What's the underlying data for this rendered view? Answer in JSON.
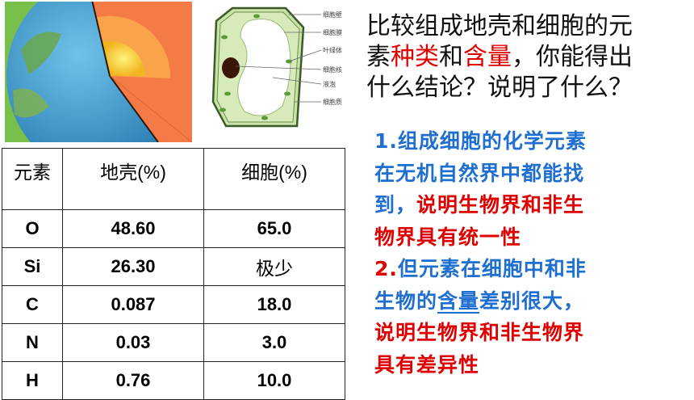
{
  "question": {
    "line1": "比较组成地壳和细胞的元",
    "line2_a": "素",
    "line2_b": "种类",
    "line2_c": "和",
    "line2_d": "含量",
    "line2_e": "，你能得出",
    "line3": "什么结论？说明了什么？"
  },
  "cell_labels": [
    "细胞壁",
    "细胞膜",
    "叶绿体",
    "细胞核",
    "液泡",
    "细胞质"
  ],
  "table": {
    "headers": [
      "元素",
      "地壳(%)",
      "细胞(%)"
    ],
    "rows": [
      [
        "O",
        "48.60",
        "65.0"
      ],
      [
        "Si",
        "26.30",
        "极少"
      ],
      [
        "C",
        "0.087",
        "18.0"
      ],
      [
        "N",
        "0.03",
        "3.0"
      ],
      [
        "H",
        "0.76",
        "10.0"
      ]
    ]
  },
  "conclusions": {
    "c1_num": "1.",
    "c1_line1": "组成细胞的化学元素",
    "c1_line2": "在无机自然界中都能找",
    "c1_line3_blue": "到，",
    "c1_line3_red": "说明生物界和非生",
    "c1_line4": "物界具有统一性",
    "c2_num": "2.",
    "c2_line1": "但元素在细胞中和非",
    "c2_line2_a": "生物的",
    "c2_line2_b": "含量",
    "c2_line2_c": "差别很大，",
    "c2_line3": "说明生物界和非生物界",
    "c2_line4": "具有差异性"
  },
  "colors": {
    "red": "#e00000",
    "blue": "#1f6fd1",
    "earth_bg": "#78c04a"
  }
}
